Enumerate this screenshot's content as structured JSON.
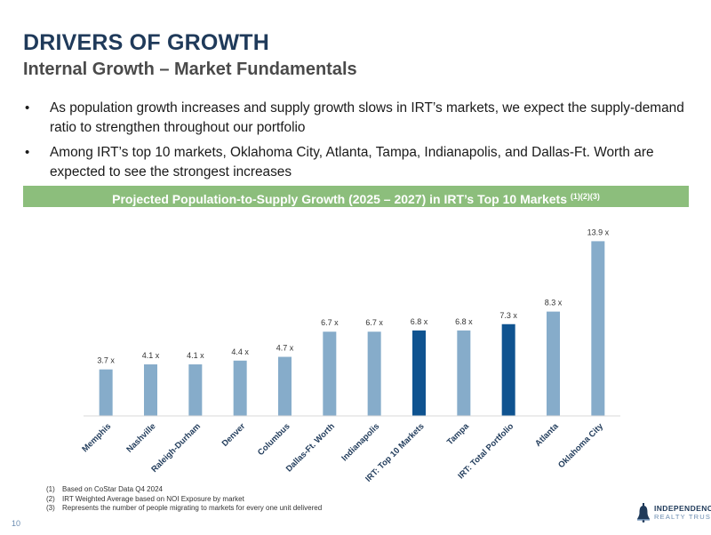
{
  "header": {
    "title": "DRIVERS OF GROWTH",
    "subtitle": "Internal Growth – Market Fundamentals"
  },
  "bullets": [
    "As population growth increases and supply growth slows in IRT’s markets, we expect the supply-demand ratio to strengthen throughout our portfolio",
    "Among IRT’s top 10 markets, Oklahoma City, Atlanta, Tampa, Indianapolis, and Dallas-Ft. Worth are expected to see the strongest increases"
  ],
  "banner": {
    "text": "Projected Population-to-Supply Growth (2025 – 2027) in IRT’s Top 10 Markets ",
    "sup": "(1)(2)(3)"
  },
  "colors": {
    "bar_light": "#86acca",
    "bar_dark": "#0f5390",
    "banner": "#8cbe7c",
    "title": "#1f3a5a"
  },
  "chart_data": {
    "type": "bar",
    "title": "Projected Population-to-Supply Growth (2025 – 2027) in IRT’s Top 10 Markets",
    "categories": [
      "Memphis",
      "Nashville",
      "Raleigh-Durham",
      "Denver",
      "Columbus",
      "Dallas-Ft. Worth",
      "Indianapolis",
      "IRT: Top 10 Markets",
      "Tampa",
      "IRT: Total Portfolio",
      "Atlanta",
      "Oklahoma City"
    ],
    "values": [
      3.7,
      4.1,
      4.1,
      4.4,
      4.7,
      6.7,
      6.7,
      6.8,
      6.8,
      7.3,
      8.3,
      13.9
    ],
    "labels": [
      "3.7 x",
      "4.1 x",
      "4.1 x",
      "4.4 x",
      "4.7 x",
      "6.7 x",
      "6.7 x",
      "6.8 x",
      "6.8 x",
      "7.3 x",
      "8.3 x",
      "13.9 x"
    ],
    "highlight": [
      false,
      false,
      false,
      false,
      false,
      false,
      false,
      true,
      false,
      true,
      false,
      false
    ],
    "xlabel": "",
    "ylabel": "",
    "ylim": [
      0,
      14
    ],
    "grid": false
  },
  "footnotes": [
    {
      "num": "(1)",
      "text": "Based on CoStar Data Q4 2024"
    },
    {
      "num": "(2)",
      "text": "IRT Weighted Average based on NOI Exposure by market"
    },
    {
      "num": "(3)",
      "text": "Represents the number of people migrating to markets for every one unit delivered"
    }
  ],
  "page_number": "10",
  "logo": {
    "line1": "INDEPENDENCE",
    "line2": "REALTY TRUST",
    "icon": "liberty-bell-icon"
  }
}
